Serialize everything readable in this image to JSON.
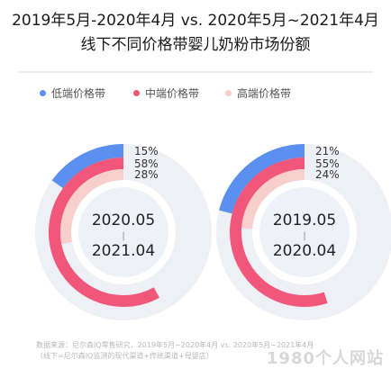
{
  "title_line1": "2019年5月-2020年4月 vs. 2020年5月~2021年4月",
  "title_line2": "线下不同价格带婴儿奶粉市场份额",
  "legend": [
    {
      "label": "低端价格带",
      "color": "#5b8ff0"
    },
    {
      "label": "中端价格带",
      "color": "#f0577a"
    },
    {
      "label": "高端价格带",
      "color": "#f7cfcd"
    }
  ],
  "chart_data": [
    {
      "type": "radial-bar",
      "center_label": {
        "line1": "2020.05",
        "separator": "|",
        "line2": "2021.04"
      },
      "series": [
        {
          "name": "低端价格带",
          "value": 15,
          "label": "15%"
        },
        {
          "name": "中端价格带",
          "value": 58,
          "label": "58%"
        },
        {
          "name": "高端价格带",
          "value": 28,
          "label": "28%"
        }
      ],
      "unit": "%"
    },
    {
      "type": "radial-bar",
      "center_label": {
        "line1": "2019.05",
        "separator": "|",
        "line2": "2020.04"
      },
      "series": [
        {
          "name": "低端价格带",
          "value": 21,
          "label": "21%"
        },
        {
          "name": "中端价格带",
          "value": 55,
          "label": "55%"
        },
        {
          "name": "高端价格带",
          "value": 24,
          "label": "24%"
        }
      ],
      "unit": "%"
    }
  ],
  "colors": {
    "track": "#eef0f6",
    "center_fill": "#eef1f8",
    "rule": "#dddddd"
  },
  "source_line1": "数据来源：尼尔森IQ零售研究，2019年5月~2020年4月 vs. 2020年5月~2021年4月",
  "source_line2": "（线下=尼尔森IQ监测的现代渠道+传统渠道+母婴店）",
  "watermark": "1980个人网站"
}
